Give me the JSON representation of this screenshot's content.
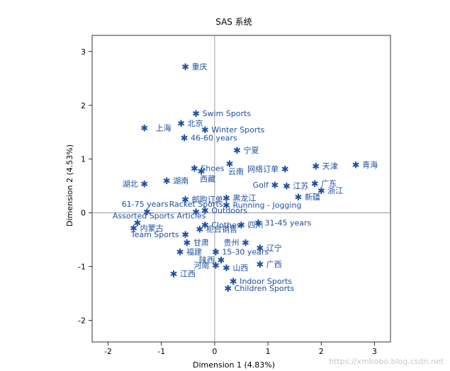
{
  "chart_data": {
    "type": "scatter",
    "title": "SAS 系统",
    "xlabel": "Dimension 1 (4.83%)",
    "ylabel": "Dimension 2 (4.53%)",
    "xlim": [
      -2.3,
      3.3
    ],
    "ylim": [
      -2.4,
      3.3
    ],
    "xticks": [
      -2,
      -1,
      0,
      1,
      2,
      3
    ],
    "yticks": [
      -2,
      -1,
      0,
      1,
      2,
      3
    ],
    "reference_lines": {
      "x": 0,
      "y": 0
    },
    "grid": false,
    "marker_color": "#1f4fa0",
    "points": [
      {
        "label": "重庆",
        "x": -0.55,
        "y": 2.72,
        "pos": "right"
      },
      {
        "label": "Swim Sports",
        "x": -0.35,
        "y": 1.85,
        "pos": "right"
      },
      {
        "label": "北京",
        "x": -0.63,
        "y": 1.67,
        "pos": "right"
      },
      {
        "label": "上海",
        "x": -1.32,
        "y": 1.58,
        "pos": "right-far"
      },
      {
        "label": "Winter Sports",
        "x": -0.18,
        "y": 1.55,
        "pos": "right"
      },
      {
        "label": "46-60 years",
        "x": -0.57,
        "y": 1.4,
        "pos": "right"
      },
      {
        "label": "宁夏",
        "x": 0.42,
        "y": 1.17,
        "pos": "right"
      },
      {
        "label": "云南",
        "x": 0.28,
        "y": 0.92,
        "pos": "below-right"
      },
      {
        "label": "网络订单",
        "x": 1.32,
        "y": 0.82,
        "pos": "left"
      },
      {
        "label": "天津",
        "x": 1.9,
        "y": 0.87,
        "pos": "right"
      },
      {
        "label": "青海",
        "x": 2.65,
        "y": 0.9,
        "pos": "right"
      },
      {
        "label": "Shoes",
        "x": -0.38,
        "y": 0.83,
        "pos": "right"
      },
      {
        "label": "西藏",
        "x": -0.25,
        "y": 0.78,
        "pos": "below-right"
      },
      {
        "label": "湖北",
        "x": -1.32,
        "y": 0.54,
        "pos": "left"
      },
      {
        "label": "湖南",
        "x": -0.9,
        "y": 0.6,
        "pos": "right"
      },
      {
        "label": "Golf",
        "x": 1.13,
        "y": 0.52,
        "pos": "left"
      },
      {
        "label": "江苏",
        "x": 1.35,
        "y": 0.5,
        "pos": "right"
      },
      {
        "label": "广东",
        "x": 1.88,
        "y": 0.55,
        "pos": "right"
      },
      {
        "label": "浙江",
        "x": 2.0,
        "y": 0.42,
        "pos": "right"
      },
      {
        "label": "新疆",
        "x": 1.57,
        "y": 0.3,
        "pos": "right"
      },
      {
        "label": "邮购订单",
        "x": -0.55,
        "y": 0.25,
        "pos": "right"
      },
      {
        "label": "黑龙江",
        "x": 0.22,
        "y": 0.28,
        "pos": "right"
      },
      {
        "label": "61-75 years",
        "x": -1.27,
        "y": 0.02,
        "pos": "above-left"
      },
      {
        "label": "Racket Sports",
        "x": -0.35,
        "y": 0.02,
        "pos": "above"
      },
      {
        "label": "Running - Jogging",
        "x": 0.22,
        "y": 0.15,
        "pos": "right"
      },
      {
        "label": "Outdoors",
        "x": -0.18,
        "y": 0.05,
        "pos": "right"
      },
      {
        "label": "Assorted Sports Articles",
        "x": -1.45,
        "y": -0.18,
        "pos": "above-right"
      },
      {
        "label": "31-45 years",
        "x": 0.82,
        "y": -0.18,
        "pos": "right"
      },
      {
        "label": "内蒙古",
        "x": -1.52,
        "y": -0.28,
        "pos": "right"
      },
      {
        "label": "Clothes",
        "x": -0.18,
        "y": -0.22,
        "pos": "right"
      },
      {
        "label": "四川",
        "x": 0.5,
        "y": -0.22,
        "pos": "right"
      },
      {
        "label": "Team Sports",
        "x": -0.55,
        "y": -0.4,
        "pos": "left"
      },
      {
        "label": "柜台销售",
        "x": -0.28,
        "y": -0.3,
        "pos": "right"
      },
      {
        "label": "甘肃",
        "x": -0.52,
        "y": -0.55,
        "pos": "right"
      },
      {
        "label": "贵州",
        "x": 0.58,
        "y": -0.55,
        "pos": "left"
      },
      {
        "label": "辽宁",
        "x": 0.85,
        "y": -0.65,
        "pos": "right"
      },
      {
        "label": "福建",
        "x": -0.65,
        "y": -0.72,
        "pos": "right"
      },
      {
        "label": "15-30 years",
        "x": 0.02,
        "y": -0.72,
        "pos": "right"
      },
      {
        "label": "陕西",
        "x": 0.12,
        "y": -0.87,
        "pos": "left"
      },
      {
        "label": "河南",
        "x": 0.02,
        "y": -0.97,
        "pos": "left"
      },
      {
        "label": "山西",
        "x": 0.22,
        "y": -1.02,
        "pos": "right"
      },
      {
        "label": "广西",
        "x": 0.85,
        "y": -0.95,
        "pos": "right"
      },
      {
        "label": "江西",
        "x": -0.77,
        "y": -1.13,
        "pos": "right"
      },
      {
        "label": "Indoor Sports",
        "x": 0.35,
        "y": -1.27,
        "pos": "right"
      },
      {
        "label": "Children Sports",
        "x": 0.25,
        "y": -1.4,
        "pos": "right"
      }
    ]
  },
  "watermark": "https://xmbobo.blog.csdn.net"
}
